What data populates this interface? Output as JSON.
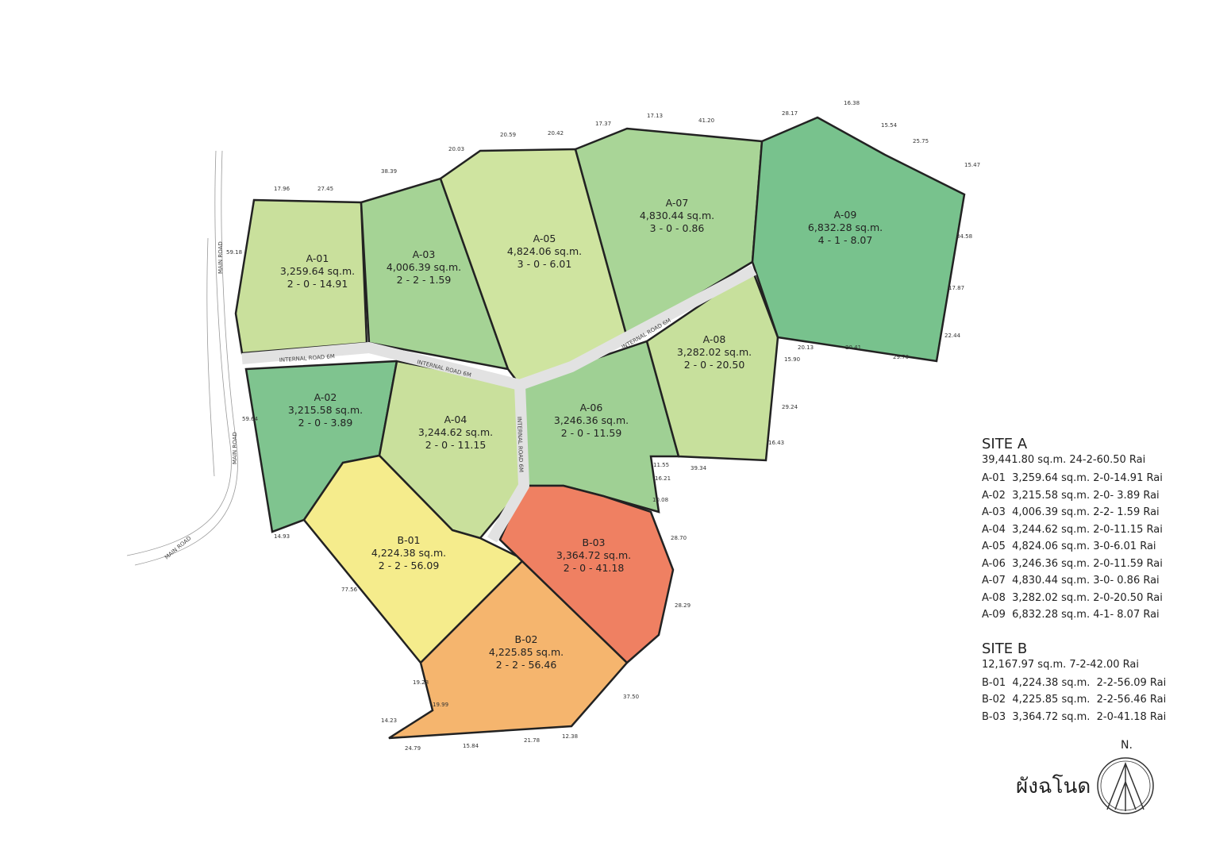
{
  "plots": [
    {
      "id": "A-01",
      "area": "3,259.64 sq.m.",
      "rai": "2 - 0 - 14.91",
      "color": "#c9e09c"
    },
    {
      "id": "A-02",
      "area": "3,215.58 sq.m.",
      "rai": "2 - 0 - 3.89",
      "color": "#7fc48f"
    },
    {
      "id": "A-03",
      "area": "4,006.39 sq.m.",
      "rai": "2 - 2 - 1.59",
      "color": "#a5d395"
    },
    {
      "id": "A-04",
      "area": "3,244.62 sq.m.",
      "rai": "2 - 0 - 11.15",
      "color": "#c9e09c"
    },
    {
      "id": "A-05",
      "area": "4,824.06 sq.m.",
      "rai": "3 - 0 - 6.01",
      "color": "#cfe4a0"
    },
    {
      "id": "A-06",
      "area": "3,246.36 sq.m.",
      "rai": "2 - 0 - 11.59",
      "color": "#9fd094"
    },
    {
      "id": "A-07",
      "area": "4,830.44 sq.m.",
      "rai": "3 - 0 - 0.86",
      "color": "#a9d597"
    },
    {
      "id": "A-08",
      "area": "3,282.02 sq.m.",
      "rai": "2 - 0 - 20.50",
      "color": "#c7e09c"
    },
    {
      "id": "A-09",
      "area": "6,832.28 sq.m.",
      "rai": "4 - 1 - 8.07",
      "color": "#78c28d"
    },
    {
      "id": "B-01",
      "area": "4,224.38 sq.m.",
      "rai": "2 - 2 - 56.09",
      "color": "#f5ec8c"
    },
    {
      "id": "B-02",
      "area": "4,225.85 sq.m.",
      "rai": "2 - 2 - 56.46",
      "color": "#f5b56e"
    },
    {
      "id": "B-03",
      "area": "3,364.72 sq.m.",
      "rai": "2 - 0 - 41.18",
      "color": "#ef8062"
    }
  ],
  "roads": {
    "internal_1": "INTERNAL ROAD 6M",
    "internal_2": "INTERNAL ROAD 6M",
    "internal_3": "INTERNAL ROAD 6M",
    "internal_4": "INTERNAL ROAD 6M",
    "main_1": "MAIN ROAD",
    "main_2": "MAIN ROAD",
    "main_3": "MAIN ROAD"
  },
  "dimensions": [
    "17.96",
    "27.45",
    "38.39",
    "20.03",
    "20.59",
    "20.42",
    "17.37",
    "17.13",
    "41.20",
    "28.17",
    "16.38",
    "15.54",
    "25.75",
    "15.47",
    "34.58",
    "17.87",
    "22.44",
    "29.70",
    "20.41",
    "20.13",
    "15.90",
    "29.24",
    "16.43",
    "39.34",
    "11.55",
    "16.21",
    "10.08",
    "28.70",
    "28.29",
    "37.50",
    "12.38",
    "21.78",
    "15.84",
    "24.79",
    "14.23",
    "19.99",
    "19.28",
    "77.56",
    "14.93",
    "59.18",
    "59.64"
  ],
  "legend": {
    "site_a": {
      "title": "SITE A",
      "total": "39,441.80 sq.m.  24-2-60.50 Rai",
      "rows": [
        "A-01  3,259.64 sq.m. 2-0-14.91 Rai",
        "A-02  3,215.58 sq.m. 2-0- 3.89 Rai",
        "A-03  4,006.39 sq.m. 2-2- 1.59 Rai",
        "A-04  3,244.62 sq.m. 2-0-11.15 Rai",
        "A-05  4,824.06 sq.m. 3-0-6.01 Rai",
        "A-06  3,246.36 sq.m. 2-0-11.59 Rai",
        "A-07  4,830.44 sq.m. 3-0- 0.86 Rai",
        "A-08  3,282.02 sq.m. 2-0-20.50 Rai",
        "A-09  6,832.28 sq.m. 4-1- 8.07 Rai"
      ]
    },
    "site_b": {
      "title": "SITE B",
      "total": "12,167.97 sq.m.  7-2-42.00 Rai",
      "rows": [
        "B-01  4,224.38 sq.m.  2-2-56.09 Rai",
        "B-02  4,225.85 sq.m.  2-2-56.46 Rai",
        "B-03  3,364.72 sq.m.  2-0-41.18 Rai"
      ]
    }
  },
  "title": "ผังฉโนด",
  "north": "N."
}
